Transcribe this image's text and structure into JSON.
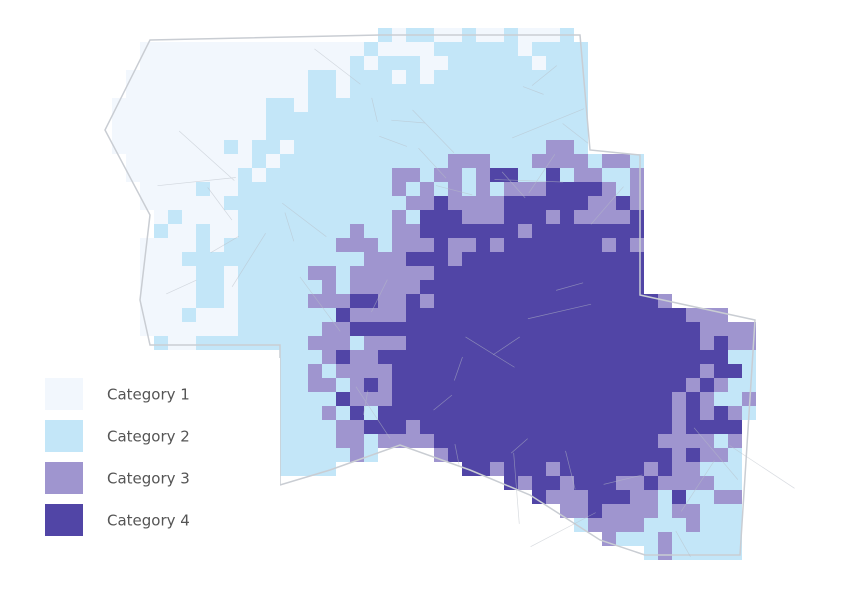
{
  "legend": {
    "items": [
      {
        "label": "Category 1",
        "color": "#f2f7fd"
      },
      {
        "label": "Category 2",
        "color": "#c3e6f8"
      },
      {
        "label": "Category 3",
        "color": "#9f95cf"
      },
      {
        "label": "Category 4",
        "color": "#5145a6"
      }
    ]
  }
}
